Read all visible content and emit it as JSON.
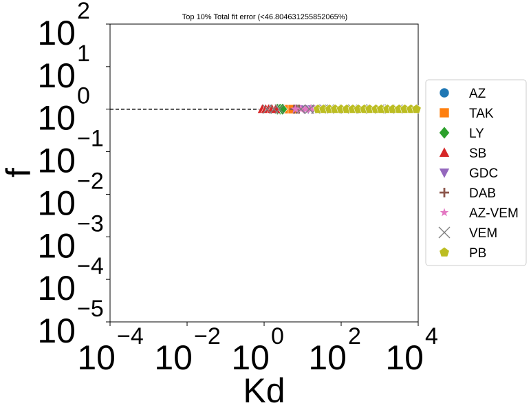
{
  "chart_data": {
    "type": "scatter",
    "title": "Top 10% Total fit error (<46.804631255852065%)",
    "xlabel": "Kd",
    "ylabel": "f",
    "xscale": "log",
    "yscale": "log",
    "xlim": [
      0.0001,
      10000
    ],
    "ylim": [
      1e-05,
      100
    ],
    "grid": false,
    "legend_position": "outside-right",
    "x_ticks": [
      {
        "base": "10",
        "exp": "−4",
        "value": 0.0001
      },
      {
        "base": "10",
        "exp": "−2",
        "value": 0.01
      },
      {
        "base": "10",
        "exp": "0",
        "value": 1
      },
      {
        "base": "10",
        "exp": "2",
        "value": 100
      },
      {
        "base": "10",
        "exp": "4",
        "value": 10000
      }
    ],
    "y_ticks": [
      {
        "base": "10",
        "exp": "−5",
        "value": 1e-05
      },
      {
        "base": "10",
        "exp": "−4",
        "value": 0.0001
      },
      {
        "base": "10",
        "exp": "−3",
        "value": 0.001
      },
      {
        "base": "10",
        "exp": "−2",
        "value": 0.01
      },
      {
        "base": "10",
        "exp": "−1",
        "value": 0.1
      },
      {
        "base": "10",
        "exp": "0",
        "value": 1
      },
      {
        "base": "10",
        "exp": "1",
        "value": 10
      },
      {
        "base": "10",
        "exp": "2",
        "value": 100
      }
    ],
    "reference_line": {
      "y": 1,
      "style": "dashed",
      "color": "#000000"
    },
    "series": [
      {
        "name": "AZ",
        "marker": "circle",
        "color": "#1f77b4",
        "x": [
          4.0,
          4.5,
          5.0
        ],
        "y": [
          1,
          1,
          1
        ]
      },
      {
        "name": "TAK",
        "marker": "square",
        "color": "#ff7f0e",
        "x": [
          3.5,
          4.0,
          4.5,
          5.5
        ],
        "y": [
          1,
          1,
          1,
          1
        ]
      },
      {
        "name": "LY",
        "marker": "diamond",
        "color": "#2ca02c",
        "x": [
          2.2,
          2.6,
          3.0
        ],
        "y": [
          1,
          1,
          1
        ]
      },
      {
        "name": "SB",
        "marker": "triangle-up",
        "color": "#d62728",
        "x": [
          0.9,
          1.1,
          1.3,
          1.6,
          2.0
        ],
        "y": [
          1,
          1,
          1,
          1,
          1
        ]
      },
      {
        "name": "GDC",
        "marker": "triangle-down",
        "color": "#9467bd",
        "x": [
          11,
          14,
          18,
          22,
          28
        ],
        "y": [
          1,
          1,
          1,
          1,
          1
        ]
      },
      {
        "name": "DAB",
        "marker": "plus",
        "color": "#8c564b",
        "x": [
          6,
          7,
          8
        ],
        "y": [
          1,
          1,
          1
        ]
      },
      {
        "name": "AZ-VEM",
        "marker": "star",
        "color": "#e377c2",
        "x": [
          6.5,
          9,
          12,
          16,
          20
        ],
        "y": [
          1,
          1,
          1,
          1,
          1
        ]
      },
      {
        "name": "VEM",
        "marker": "x",
        "color": "#7f7f7f",
        "x": [
          1.2,
          1.8,
          2.5,
          9,
          15,
          22,
          35,
          50,
          80,
          120,
          200,
          350,
          600,
          1000,
          1800,
          3000
        ],
        "y": [
          1,
          1,
          1,
          1,
          1,
          1,
          1,
          1,
          1,
          1,
          1,
          1,
          1,
          1,
          1,
          1
        ]
      },
      {
        "name": "PB",
        "marker": "pentagon",
        "color": "#bcbd22",
        "x": [
          25,
          35,
          50,
          70,
          100,
          140,
          200,
          280,
          400,
          550,
          800,
          1100,
          1600,
          2200,
          3200,
          4500,
          6500,
          9000
        ],
        "y": [
          1,
          1,
          1,
          1,
          1,
          1,
          1,
          1,
          1,
          1,
          1,
          1,
          1,
          1,
          1,
          1,
          1,
          1
        ]
      }
    ]
  }
}
